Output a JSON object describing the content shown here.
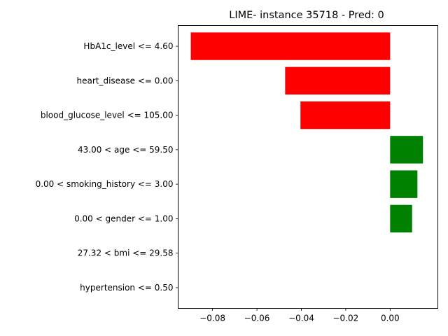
{
  "chart_data": {
    "type": "bar",
    "orientation": "horizontal",
    "title": "LIME- instance 35718 - Pred: 0",
    "xlabel": "",
    "ylabel": "",
    "categories": [
      "HbA1c_level <= 4.60",
      "heart_disease <= 0.00",
      "blood_glucose_level <= 105.00",
      "43.00 < age <= 59.50",
      "0.00 < smoking_history <= 3.00",
      "0.00 < gender <= 1.00",
      "27.32 < bmi <= 29.58",
      "hypertension <= 0.50"
    ],
    "values": [
      -0.0898,
      -0.0473,
      -0.0404,
      0.0148,
      0.0123,
      0.0099,
      0.0,
      0.0
    ],
    "xlim": [
      -0.0955,
      0.0215
    ],
    "xticks": [
      -0.08,
      -0.06,
      -0.04,
      -0.02,
      0.0
    ],
    "xtick_labels": [
      "−0.08",
      "−0.06",
      "−0.04",
      "−0.02",
      "0.00"
    ],
    "grid": false,
    "colors": {
      "negative": "#ff0000",
      "positive": "#008000"
    }
  }
}
